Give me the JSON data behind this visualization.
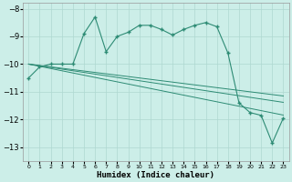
{
  "xlabel": "Humidex (Indice chaleur)",
  "x_values": [
    0,
    1,
    2,
    3,
    4,
    5,
    6,
    7,
    8,
    9,
    10,
    11,
    12,
    13,
    14,
    15,
    16,
    17,
    18,
    19,
    20,
    21,
    22,
    23
  ],
  "main_line": [
    -10.5,
    -10.1,
    -10.0,
    -10.0,
    -10.0,
    -8.9,
    -8.3,
    -9.55,
    -9.0,
    -8.85,
    -8.6,
    -8.6,
    -8.75,
    -8.95,
    -8.75,
    -8.6,
    -8.5,
    -8.65,
    -9.6,
    -11.4,
    -11.75,
    -11.85,
    -12.85,
    -11.95
  ],
  "flat_lines": [
    [
      -10.0,
      -10.05,
      -10.1,
      -10.15,
      -10.2,
      -10.25,
      -10.3,
      -10.35,
      -10.4,
      -10.45,
      -10.5,
      -10.55,
      -10.6,
      -10.65,
      -10.7,
      -10.75,
      -10.8,
      -10.85,
      -10.9,
      -10.95,
      -11.0,
      -11.05,
      -11.1,
      -11.15
    ],
    [
      -10.0,
      -10.06,
      -10.12,
      -10.18,
      -10.24,
      -10.3,
      -10.36,
      -10.42,
      -10.48,
      -10.54,
      -10.6,
      -10.66,
      -10.72,
      -10.78,
      -10.84,
      -10.9,
      -10.96,
      -11.02,
      -11.08,
      -11.14,
      -11.2,
      -11.26,
      -11.32,
      -11.38
    ],
    [
      -10.0,
      -10.08,
      -10.16,
      -10.24,
      -10.32,
      -10.4,
      -10.48,
      -10.56,
      -10.64,
      -10.72,
      -10.8,
      -10.88,
      -10.96,
      -11.04,
      -11.12,
      -11.2,
      -11.28,
      -11.36,
      -11.44,
      -11.52,
      -11.6,
      -11.68,
      -11.76,
      -11.84
    ]
  ],
  "line_color": "#2d8b74",
  "bg_color": "#cceee8",
  "grid_color": "#aed8d0",
  "ylim": [
    -13.5,
    -7.8
  ],
  "xlim": [
    -0.5,
    23.5
  ],
  "yticks": [
    -8,
    -9,
    -10,
    -11,
    -12,
    -13
  ],
  "xticks": [
    0,
    1,
    2,
    3,
    4,
    5,
    6,
    7,
    8,
    9,
    10,
    11,
    12,
    13,
    14,
    15,
    16,
    17,
    18,
    19,
    20,
    21,
    22,
    23
  ]
}
